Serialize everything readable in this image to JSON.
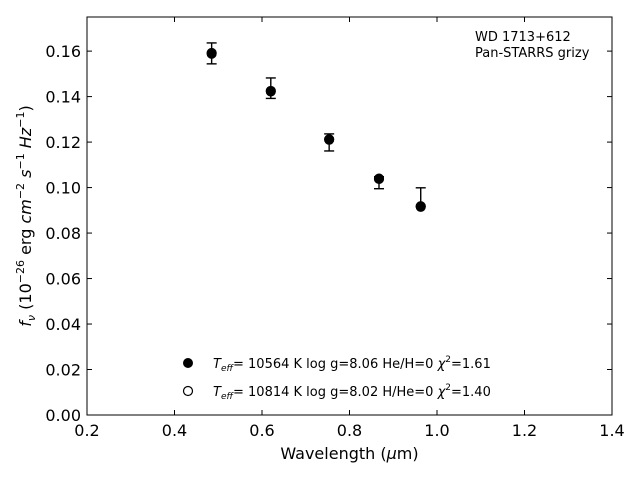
{
  "chart_data": {
    "type": "scatter",
    "xlabel": "Wavelength (μm)",
    "ylabel": "f_ν (10^−26 erg cm^−2 s^−1 Hz^−1)",
    "xlim": [
      0.2,
      1.4
    ],
    "ylim": [
      0.0,
      0.175
    ],
    "x_ticks": [
      0.2,
      0.4,
      0.6,
      0.8,
      1.0,
      1.2,
      1.4
    ],
    "x_tick_labels": [
      "0.2",
      "0.4",
      "0.6",
      "0.8",
      "1.0",
      "1.2",
      "1.4"
    ],
    "y_ticks": [
      0.0,
      0.02,
      0.04,
      0.06,
      0.08,
      0.1,
      0.12,
      0.14,
      0.16
    ],
    "y_tick_labels": [
      "0.00",
      "0.02",
      "0.04",
      "0.06",
      "0.08",
      "0.10",
      "0.12",
      "0.14",
      "0.16"
    ],
    "grid": false,
    "annotation": [
      "WD 1713+612",
      "Pan-STARRS grizy"
    ],
    "observed": {
      "x": [
        0.4849,
        0.6201,
        0.7535,
        0.8674,
        0.9628
      ],
      "y": [
        0.159,
        0.1435,
        0.1198,
        0.1032,
        0.0932
      ],
      "yerr_low": [
        0.0046,
        0.0043,
        0.0037,
        0.0037,
        0.0016
      ],
      "yerr_high": [
        0.0046,
        0.0047,
        0.0038,
        0.0016,
        0.0067
      ]
    },
    "series": [
      {
        "name": "T_eff= 10564 K  log g=8.06  He/H=0  χ^2=1.61",
        "marker": "filled-circle",
        "x": [
          0.4849,
          0.6201,
          0.7535,
          0.8674,
          0.9628
        ],
        "y": [
          0.1588,
          0.1422,
          0.121,
          0.104,
          0.0915
        ]
      },
      {
        "name": "T_eff= 10814 K  log g=8.02  H/He=0  χ^2=1.40",
        "marker": "open-circle",
        "x": [
          0.4849,
          0.6201,
          0.7535,
          0.8674,
          0.9628
        ],
        "y": [
          0.1592,
          0.1425,
          0.1212,
          0.1038,
          0.0918
        ]
      }
    ],
    "legend_position": "lower-center",
    "colors": {
      "marker": "#000000",
      "axes": "#000000",
      "background": "#ffffff"
    }
  }
}
